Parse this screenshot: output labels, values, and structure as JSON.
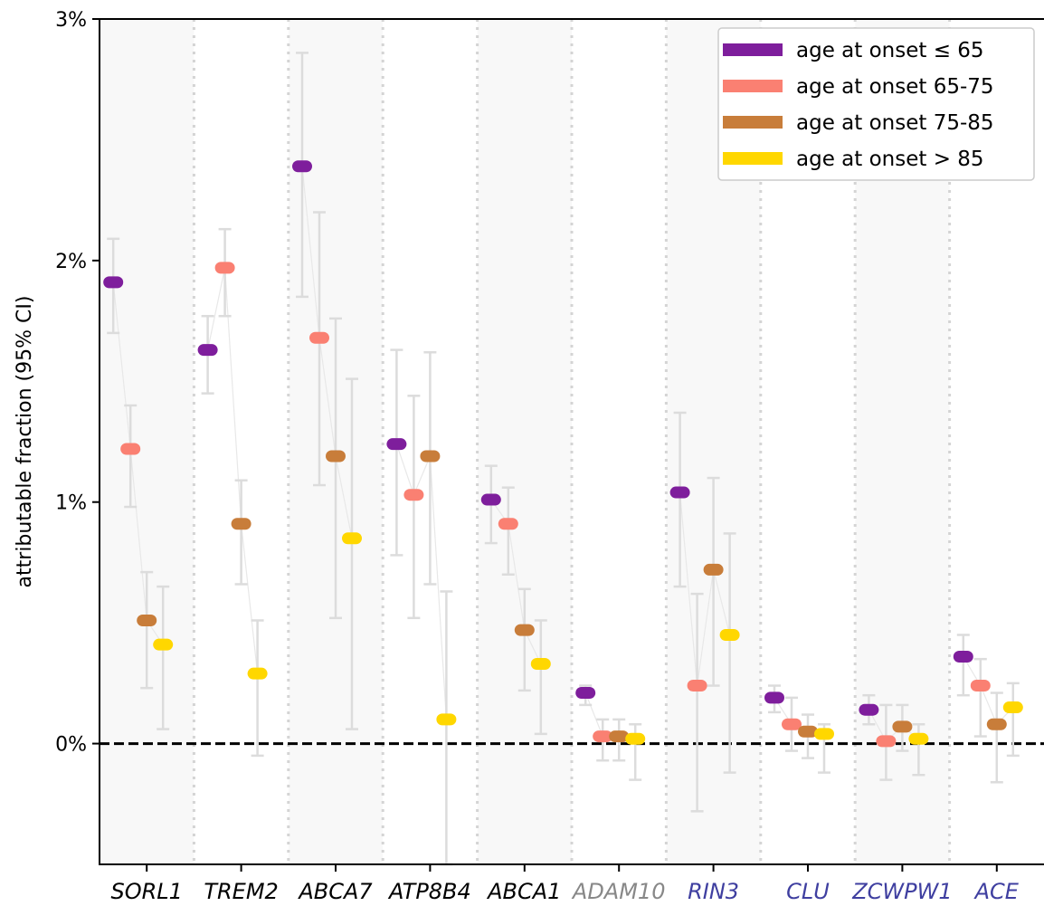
{
  "chart_data": {
    "type": "scatter",
    "title": "",
    "xlabel": "",
    "ylabel": "attributable fraction (95% CI)",
    "ylim": [
      -0.5,
      3.0
    ],
    "yticks": [
      0,
      1,
      2,
      3
    ],
    "ytick_labels": [
      "0%",
      "1%",
      "2%",
      "3%"
    ],
    "reference_line": {
      "y": 0,
      "style": "dashed",
      "color": "#000000"
    },
    "shaded_alternate_bands": true,
    "grid": false,
    "legend_placement": "top-right",
    "categories": [
      {
        "label": "SORL1",
        "color": "#000000"
      },
      {
        "label": "TREM2",
        "color": "#000000"
      },
      {
        "label": "ABCA7",
        "color": "#000000"
      },
      {
        "label": "ATP8B4",
        "color": "#000000"
      },
      {
        "label": "ABCA1",
        "color": "#000000"
      },
      {
        "label": "ADAM10",
        "color": "#888888"
      },
      {
        "label": "RIN3",
        "color": "#3f3fa0"
      },
      {
        "label": "CLU",
        "color": "#3f3fa0"
      },
      {
        "label": "ZCWPW1",
        "color": "#3f3fa0"
      },
      {
        "label": "ACE",
        "color": "#3f3fa0"
      }
    ],
    "series": [
      {
        "name": "age at onset ≤ 65",
        "color": "#7e1e9c",
        "values": [
          1.91,
          1.63,
          2.39,
          1.24,
          1.01,
          0.21,
          1.04,
          0.19,
          0.14,
          0.36
        ],
        "ci_low": [
          1.7,
          1.45,
          1.85,
          0.78,
          0.83,
          0.16,
          0.65,
          0.13,
          0.08,
          0.2
        ],
        "ci_high": [
          2.09,
          1.77,
          2.86,
          1.63,
          1.15,
          0.24,
          1.37,
          0.24,
          0.2,
          0.45
        ]
      },
      {
        "name": "age at onset 65-75",
        "color": "#fa8072",
        "values": [
          1.22,
          1.97,
          1.68,
          1.03,
          0.91,
          0.03,
          0.24,
          0.08,
          0.01,
          0.24
        ],
        "ci_low": [
          0.98,
          1.77,
          1.07,
          0.52,
          0.7,
          -0.07,
          -0.28,
          -0.03,
          -0.15,
          0.03
        ],
        "ci_high": [
          1.4,
          2.13,
          2.2,
          1.44,
          1.06,
          0.1,
          0.62,
          0.19,
          0.16,
          0.35
        ]
      },
      {
        "name": "age at onset 75-85",
        "color": "#c87d3a",
        "values": [
          0.51,
          0.91,
          1.19,
          1.19,
          0.47,
          0.03,
          0.72,
          0.05,
          0.07,
          0.08
        ],
        "ci_low": [
          0.23,
          0.66,
          0.52,
          0.66,
          0.22,
          -0.07,
          0.24,
          -0.06,
          -0.03,
          -0.16
        ],
        "ci_high": [
          0.71,
          1.09,
          1.76,
          1.62,
          0.64,
          0.1,
          1.1,
          0.12,
          0.16,
          0.21
        ]
      },
      {
        "name": "age at onset > 85",
        "color": "#ffd700",
        "values": [
          0.41,
          0.29,
          0.85,
          0.1,
          0.33,
          0.02,
          0.45,
          0.04,
          0.02,
          0.15
        ],
        "ci_low": [
          0.06,
          -0.05,
          0.06,
          -0.5,
          0.04,
          -0.15,
          -0.12,
          -0.12,
          -0.13,
          -0.05
        ],
        "ci_high": [
          0.65,
          0.51,
          1.51,
          0.63,
          0.51,
          0.08,
          0.87,
          0.08,
          0.08,
          0.25
        ]
      }
    ]
  }
}
